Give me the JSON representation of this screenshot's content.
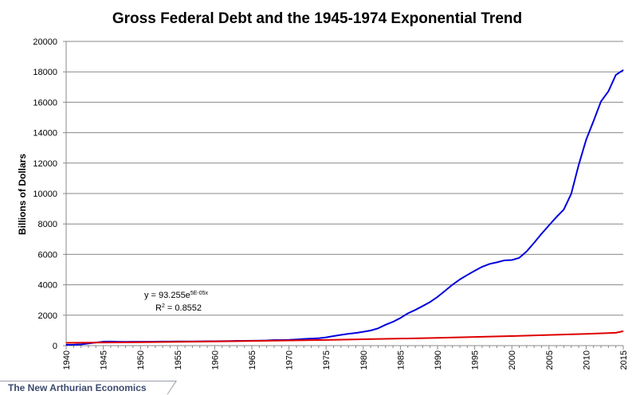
{
  "chart_data": {
    "type": "line",
    "title": "Gross Federal Debt and the 1945-1974 Exponential Trend",
    "xlabel": "",
    "ylabel": "Billions of Dollars",
    "xlim": [
      1940,
      2015
    ],
    "ylim": [
      0,
      20000
    ],
    "x_ticks": [
      "1940",
      "1945",
      "1950",
      "1955",
      "1960",
      "1965",
      "1970",
      "1975",
      "1980",
      "1985",
      "1990",
      "1995",
      "2000",
      "2005",
      "2010",
      "2015"
    ],
    "y_ticks": [
      "0",
      "2000",
      "4000",
      "6000",
      "8000",
      "10000",
      "12000",
      "14000",
      "16000",
      "18000",
      "20000"
    ],
    "grid": true,
    "legend": "none",
    "series": [
      {
        "color": "#0000dd",
        "x": [
          1940,
          1941,
          1942,
          1943,
          1944,
          1945,
          1946,
          1947,
          1948,
          1949,
          1950,
          1951,
          1952,
          1953,
          1954,
          1955,
          1956,
          1957,
          1958,
          1959,
          1960,
          1961,
          1962,
          1963,
          1964,
          1965,
          1966,
          1967,
          1968,
          1969,
          1970,
          1971,
          1972,
          1973,
          1974,
          1975,
          1976,
          1977,
          1978,
          1979,
          1980,
          1981,
          1982,
          1983,
          1984,
          1985,
          1986,
          1987,
          1988,
          1989,
          1990,
          1991,
          1992,
          1993,
          1994,
          1995,
          1996,
          1997,
          1998,
          1999,
          2000,
          2001,
          2002,
          2003,
          2004,
          2005,
          2006,
          2007,
          2008,
          2009,
          2010,
          2011,
          2012,
          2013,
          2014,
          2015
        ],
        "values": [
          51,
          58,
          79,
          143,
          204,
          260,
          271,
          257,
          252,
          253,
          257,
          255,
          259,
          266,
          271,
          274,
          273,
          272,
          280,
          287,
          291,
          293,
          303,
          311,
          317,
          322,
          328,
          340,
          369,
          366,
          381,
          408,
          436,
          466,
          484,
          542,
          629,
          706,
          777,
          829,
          909,
          995,
          1137,
          1372,
          1565,
          1817,
          2121,
          2346,
          2601,
          2868,
          3206,
          3598,
          4002,
          4351,
          4643,
          4921,
          5181,
          5369,
          5478,
          5605,
          5628,
          5769,
          6198,
          6760,
          7354,
          7905,
          8451,
          8951,
          9986,
          11876,
          13529,
          14764,
          16051,
          16719,
          17794,
          18120
        ]
      },
      {
        "color": "#dd0000",
        "x": [
          1940,
          1945,
          1950,
          1955,
          1960,
          1965,
          1970,
          1975,
          1980,
          1985,
          1990,
          1995,
          2000,
          2005,
          2010,
          2014,
          2015
        ],
        "values": [
          180,
          202,
          224,
          248,
          275,
          305,
          338,
          375,
          416,
          462,
          512,
          568,
          630,
          699,
          775,
          843,
          950
        ]
      }
    ],
    "annotations": {
      "equation_prefix": "y = 93.255e",
      "equation_exponent": "5E-05x",
      "r2_prefix": "R",
      "r2_sup": "2",
      "r2_suffix": " = 0.8552"
    }
  },
  "watermark": "The New Arthurian Economics"
}
